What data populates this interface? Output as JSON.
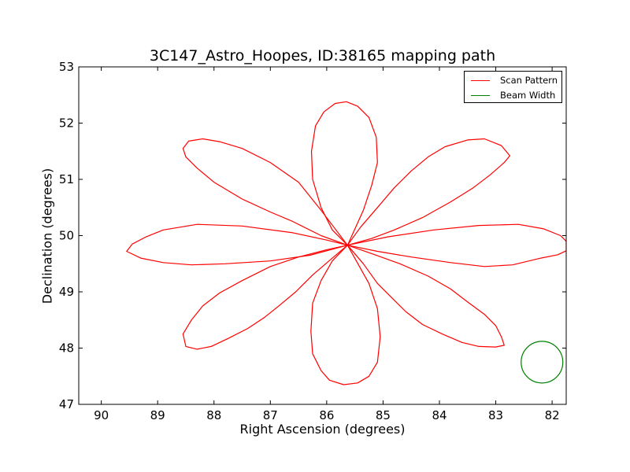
{
  "chart_data": {
    "type": "line",
    "title": "3C147_Astro_Hoopes, ID:38165 mapping path",
    "xlabel": "Right Ascension (degrees)",
    "ylabel": "Declination (degrees)",
    "xlim": [
      90.4,
      81.75
    ],
    "ylim": [
      47,
      53
    ],
    "x_inverted": true,
    "xticks": [
      90,
      89,
      88,
      87,
      86,
      85,
      84,
      83,
      82
    ],
    "yticks": [
      47,
      48,
      49,
      50,
      51,
      52,
      53
    ],
    "grid": false,
    "legend_position": "top-right",
    "center": [
      85.63,
      49.83
    ],
    "series": [
      {
        "name": "Scan Pattern",
        "color": "#ff0000",
        "segments": [
          [
            [
              85.63,
              49.83
            ],
            [
              85.9,
              50.1
            ],
            [
              86.1,
              50.5
            ],
            [
              86.25,
              51.0
            ],
            [
              86.27,
              51.5
            ],
            [
              86.2,
              51.95
            ],
            [
              86.05,
              52.2
            ],
            [
              85.85,
              52.35
            ],
            [
              85.65,
              52.38
            ],
            [
              85.45,
              52.3
            ],
            [
              85.25,
              52.1
            ],
            [
              85.12,
              51.75
            ],
            [
              85.1,
              51.3
            ],
            [
              85.2,
              50.9
            ],
            [
              85.35,
              50.45
            ],
            [
              85.63,
              49.83
            ]
          ],
          [
            [
              85.63,
              49.83
            ],
            [
              85.35,
              49.5
            ],
            [
              85.1,
              49.15
            ],
            [
              84.85,
              48.9
            ],
            [
              84.6,
              48.65
            ],
            [
              84.3,
              48.42
            ],
            [
              83.95,
              48.25
            ],
            [
              83.6,
              48.1
            ],
            [
              83.3,
              48.03
            ],
            [
              83.0,
              48.02
            ],
            [
              82.85,
              48.05
            ],
            [
              82.9,
              48.2
            ],
            [
              83.0,
              48.4
            ],
            [
              83.2,
              48.6
            ],
            [
              83.5,
              48.82
            ],
            [
              83.8,
              49.05
            ],
            [
              84.2,
              49.28
            ],
            [
              84.7,
              49.5
            ],
            [
              85.2,
              49.68
            ],
            [
              85.63,
              49.83
            ]
          ],
          [
            [
              85.63,
              49.83
            ],
            [
              85.9,
              49.55
            ],
            [
              86.1,
              49.2
            ],
            [
              86.25,
              48.8
            ],
            [
              86.28,
              48.3
            ],
            [
              86.25,
              47.9
            ],
            [
              86.1,
              47.6
            ],
            [
              85.95,
              47.43
            ],
            [
              85.7,
              47.35
            ],
            [
              85.45,
              47.38
            ],
            [
              85.25,
              47.5
            ],
            [
              85.1,
              47.75
            ],
            [
              85.05,
              48.2
            ],
            [
              85.1,
              48.7
            ],
            [
              85.25,
              49.15
            ],
            [
              85.63,
              49.83
            ]
          ],
          [
            [
              85.63,
              49.83
            ],
            [
              86.1,
              50.0
            ],
            [
              86.6,
              50.25
            ],
            [
              87.0,
              50.42
            ],
            [
              87.5,
              50.65
            ],
            [
              88.0,
              50.95
            ],
            [
              88.3,
              51.2
            ],
            [
              88.5,
              51.4
            ],
            [
              88.55,
              51.55
            ],
            [
              88.45,
              51.68
            ],
            [
              88.2,
              51.72
            ],
            [
              87.9,
              51.67
            ],
            [
              87.5,
              51.55
            ],
            [
              87.0,
              51.3
            ],
            [
              86.5,
              50.95
            ],
            [
              86.1,
              50.45
            ],
            [
              85.63,
              49.83
            ]
          ],
          [
            [
              85.63,
              49.83
            ],
            [
              85.9,
              49.6
            ],
            [
              86.25,
              49.3
            ],
            [
              86.55,
              49.0
            ],
            [
              86.85,
              48.75
            ],
            [
              87.1,
              48.55
            ],
            [
              87.4,
              48.35
            ],
            [
              87.75,
              48.17
            ],
            [
              88.05,
              48.03
            ],
            [
              88.3,
              47.98
            ],
            [
              88.5,
              48.03
            ],
            [
              88.55,
              48.25
            ],
            [
              88.4,
              48.5
            ],
            [
              88.2,
              48.75
            ],
            [
              87.9,
              48.98
            ],
            [
              87.5,
              49.2
            ],
            [
              87.0,
              49.45
            ],
            [
              86.5,
              49.62
            ],
            [
              86.0,
              49.75
            ],
            [
              85.63,
              49.83
            ]
          ],
          [
            [
              85.63,
              49.83
            ],
            [
              85.2,
              49.95
            ],
            [
              84.8,
              50.1
            ],
            [
              84.3,
              50.32
            ],
            [
              83.8,
              50.6
            ],
            [
              83.4,
              50.85
            ],
            [
              83.1,
              51.08
            ],
            [
              82.85,
              51.3
            ],
            [
              82.75,
              51.42
            ],
            [
              82.9,
              51.6
            ],
            [
              83.2,
              51.72
            ],
            [
              83.5,
              51.7
            ],
            [
              83.9,
              51.58
            ],
            [
              84.2,
              51.4
            ],
            [
              84.5,
              51.15
            ],
            [
              84.8,
              50.85
            ],
            [
              85.1,
              50.5
            ],
            [
              85.4,
              50.15
            ],
            [
              85.63,
              49.83
            ]
          ],
          [
            [
              85.63,
              49.83
            ],
            [
              86.3,
              49.65
            ],
            [
              87.0,
              49.55
            ],
            [
              87.8,
              49.5
            ],
            [
              88.4,
              49.48
            ],
            [
              88.9,
              49.52
            ],
            [
              89.3,
              49.6
            ],
            [
              89.55,
              49.72
            ],
            [
              89.45,
              49.85
            ],
            [
              89.2,
              49.98
            ],
            [
              88.9,
              50.1
            ],
            [
              88.3,
              50.2
            ],
            [
              87.5,
              50.17
            ],
            [
              86.6,
              50.05
            ],
            [
              86.0,
              49.92
            ],
            [
              85.63,
              49.83
            ]
          ],
          [
            [
              85.63,
              49.83
            ],
            [
              84.9,
              49.98
            ],
            [
              84.1,
              50.1
            ],
            [
              83.3,
              50.18
            ],
            [
              82.6,
              50.2
            ],
            [
              82.15,
              50.12
            ],
            [
              81.85,
              50.0
            ],
            [
              81.75,
              49.9
            ],
            [
              81.75,
              49.73
            ],
            [
              81.9,
              49.66
            ],
            [
              82.2,
              49.6
            ],
            [
              82.7,
              49.48
            ],
            [
              83.2,
              49.45
            ],
            [
              83.8,
              49.52
            ],
            [
              84.5,
              49.62
            ],
            [
              85.1,
              49.72
            ],
            [
              85.63,
              49.83
            ]
          ]
        ]
      },
      {
        "name": "Beam Width",
        "color": "#008000",
        "circle": {
          "center": [
            82.18,
            47.75
          ],
          "radius_deg": 0.37
        }
      }
    ]
  }
}
